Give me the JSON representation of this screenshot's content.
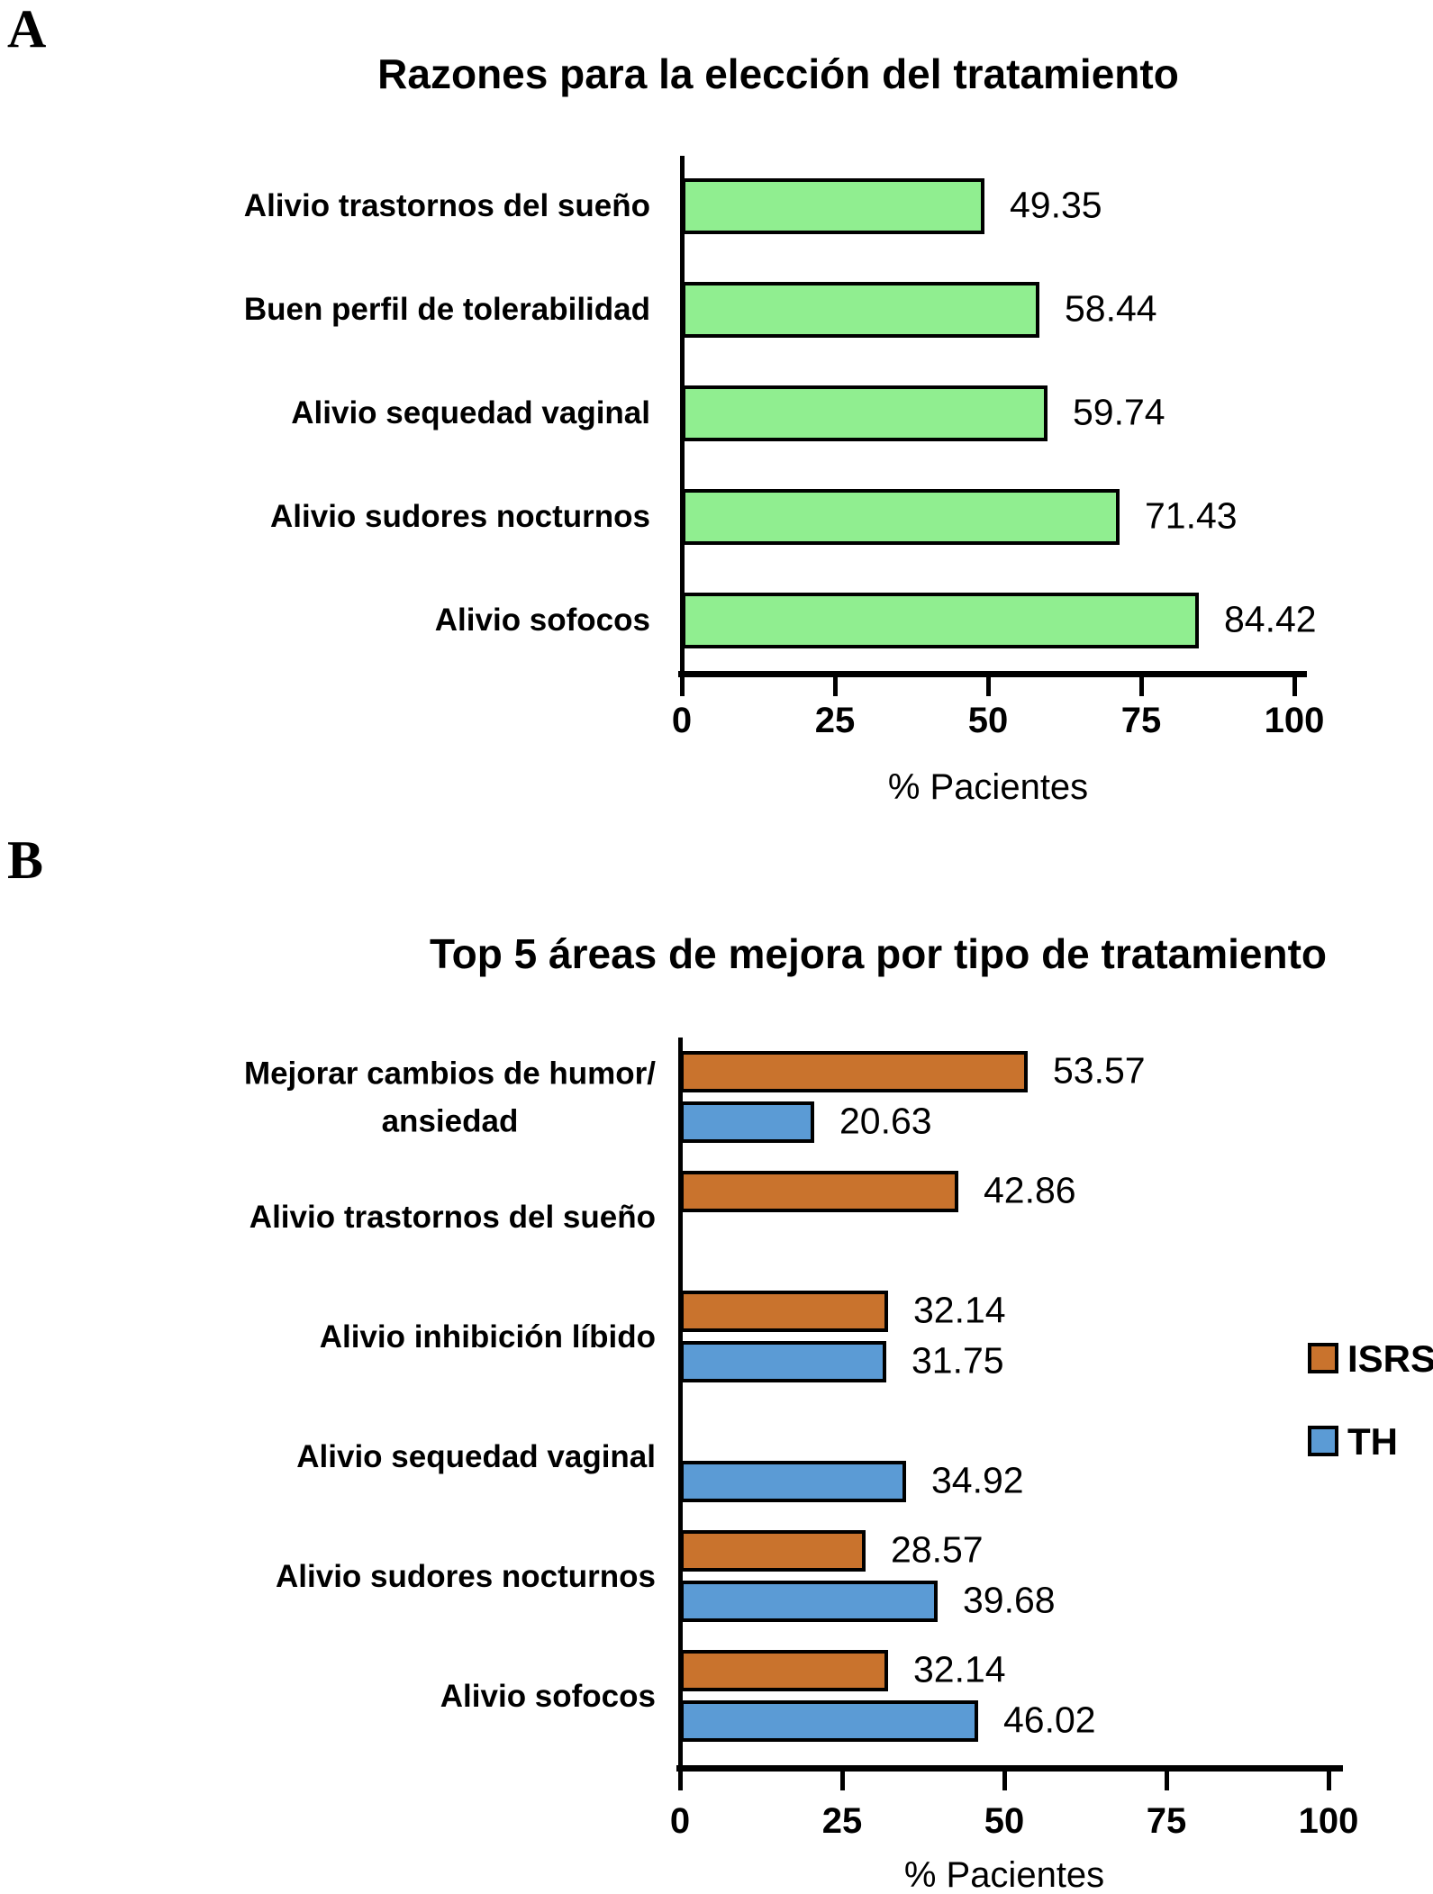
{
  "page": {
    "background": "#ffffff",
    "axis_color": "#000000"
  },
  "panels": [
    {
      "panel_letter": "A",
      "title": "Razones para la elección del tratamiento",
      "xlabel": "% Pacientes",
      "x_ticks": [
        "0",
        "25",
        "50",
        "75",
        "100"
      ],
      "chart_data": {
        "type": "bar",
        "orientation": "horizontal",
        "categories": [
          "Alivio trastornos del sueño",
          "Buen perfil de tolerabilidad",
          "Alivio sequedad vaginal",
          "Alivio sudores nocturnos",
          "Alivio sofocos"
        ],
        "categories_lines": [
          [
            "Alivio trastornos del sueño"
          ],
          [
            "Buen perfil de tolerabilidad"
          ],
          [
            "Alivio sequedad vaginal"
          ],
          [
            "Alivio sudores nocturnos"
          ],
          [
            "Alivio sofocos"
          ]
        ],
        "values": [
          49.35,
          58.44,
          59.74,
          71.43,
          84.42
        ],
        "value_labels": [
          "49.35",
          "58.44",
          "59.74",
          "71.43",
          "84.42"
        ],
        "bar_color": "#90EE90",
        "bar_border_color": "#000000",
        "xlim": [
          0,
          100
        ],
        "xlabel": "% Pacientes",
        "grid": false
      }
    },
    {
      "panel_letter": "B",
      "title": "Top 5 áreas de mejora por tipo de tratamiento",
      "xlabel": "% Pacientes",
      "x_ticks": [
        "0",
        "25",
        "50",
        "75",
        "100"
      ],
      "legend": [
        {
          "label": "ISRS",
          "color": "#C9732D"
        },
        {
          "label": "TH",
          "color": "#5B9BD5"
        }
      ],
      "chart_data": {
        "type": "bar",
        "orientation": "horizontal",
        "categories": [
          "Mejorar cambios de humor/ ansiedad",
          "Alivio trastornos del sueño",
          "Alivio inhibición líbido",
          "Alivio sequedad vaginal",
          "Alivio sudores nocturnos",
          "Alivio sofocos"
        ],
        "categories_lines": [
          [
            "Mejorar cambios de humor/",
            "ansiedad"
          ],
          [
            "Alivio trastornos del sueño"
          ],
          [
            "Alivio inhibición líbido"
          ],
          [
            "Alivio sequedad vaginal"
          ],
          [
            "Alivio sudores nocturnos"
          ],
          [
            "Alivio sofocos"
          ]
        ],
        "series": [
          {
            "name": "ISRS",
            "color": "#C9732D",
            "values": [
              53.57,
              42.86,
              32.14,
              null,
              28.57,
              32.14
            ],
            "value_labels": [
              "53.57",
              "42.86",
              "32.14",
              null,
              "28.57",
              "32.14"
            ]
          },
          {
            "name": "TH",
            "color": "#5B9BD5",
            "values": [
              20.63,
              null,
              31.75,
              34.92,
              39.68,
              46.02
            ],
            "value_labels": [
              "20.63",
              null,
              "31.75",
              "34.92",
              "39.68",
              "46.02"
            ]
          }
        ],
        "bar_border_color": "#000000",
        "xlim": [
          0,
          100
        ],
        "xlabel": "% Pacientes",
        "legend_position": "right",
        "grid": false
      }
    }
  ]
}
